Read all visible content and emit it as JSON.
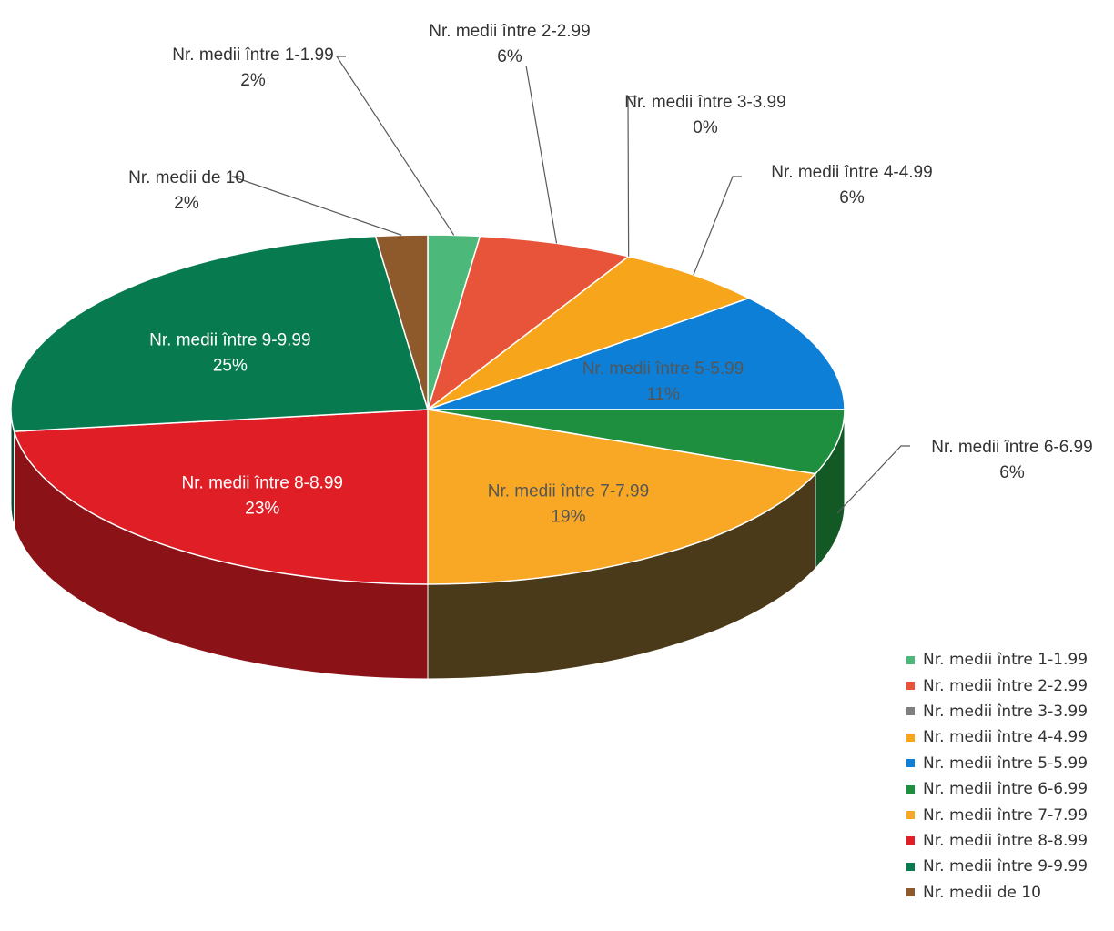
{
  "chart_data": {
    "type": "pie",
    "three_d": true,
    "legend_position": "bottom-right",
    "slices": [
      {
        "label": "Nr. medii între 1-1.99",
        "value": 2,
        "value_label": "2%",
        "color": "#4CB97A"
      },
      {
        "label": "Nr. medii între 2-2.99",
        "value": 6,
        "value_label": "6%",
        "color": "#E8543A"
      },
      {
        "label": "Nr. medii între 3-3.99",
        "value": 0,
        "value_label": "0%",
        "color": "#7F7F7F"
      },
      {
        "label": "Nr. medii între 4-4.99",
        "value": 6,
        "value_label": "6%",
        "color": "#F7A61B"
      },
      {
        "label": "Nr. medii între 5-5.99",
        "value": 11,
        "value_label": "11%",
        "color": "#0E7FD6"
      },
      {
        "label": "Nr. medii între 6-6.99",
        "value": 6,
        "value_label": "6%",
        "color": "#1E8F3E"
      },
      {
        "label": "Nr. medii între 7-7.99",
        "value": 19,
        "value_label": "19%",
        "color": "#F9A825"
      },
      {
        "label": "Nr. medii între 8-8.99",
        "value": 23,
        "value_label": "23%",
        "color": "#E01E26"
      },
      {
        "label": "Nr. medii între 9-9.99",
        "value": 25,
        "value_label": "25%",
        "color": "#087A4F"
      },
      {
        "label": "Nr. medii de 10",
        "value": 2,
        "value_label": "2%",
        "color": "#8E5A2B"
      }
    ]
  }
}
